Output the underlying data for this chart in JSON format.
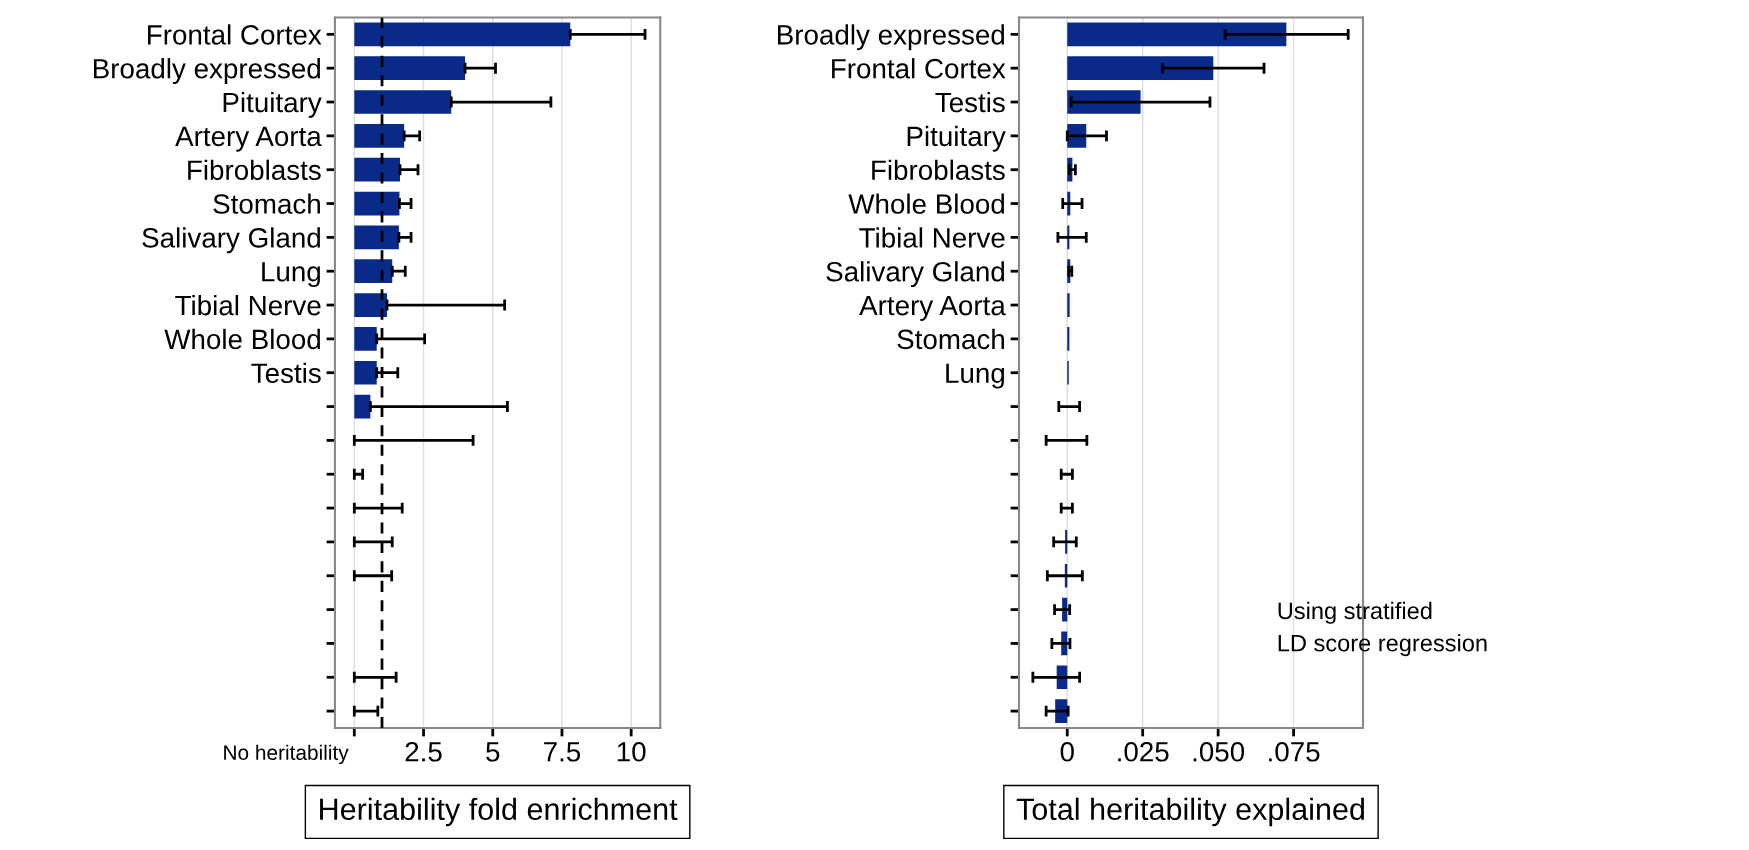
{
  "chart_data": [
    {
      "type": "bar",
      "orientation": "horizontal",
      "xlabel": "Heritability fold enrichment",
      "categories": [
        "Frontal Cortex",
        "Broadly expressed",
        "Pituitary",
        "Artery Aorta",
        "Fibroblasts",
        "Stomach",
        "Salivary Gland",
        "Lung",
        "Tibial Nerve",
        "Whole Blood",
        "Testis",
        null,
        null,
        null,
        null,
        null,
        null,
        null,
        null,
        null,
        null
      ],
      "series": [
        {
          "color": "#0a2a8a",
          "values": [
            7.8,
            4.0,
            3.5,
            1.8,
            1.65,
            1.63,
            1.61,
            1.37,
            1.18,
            0.81,
            0.81,
            0.58,
            0,
            0,
            0,
            0,
            0,
            0,
            0,
            0,
            0
          ],
          "errors": [
            [
              7.8,
              10.5
            ],
            [
              4.0,
              5.1
            ],
            [
              3.5,
              7.1
            ],
            [
              1.8,
              2.36
            ],
            [
              1.65,
              2.3
            ],
            [
              1.63,
              2.05
            ],
            [
              1.61,
              2.05
            ],
            [
              1.37,
              1.84
            ],
            [
              1.18,
              5.43
            ],
            [
              0.81,
              2.54
            ],
            [
              0.81,
              1.57
            ],
            [
              0.58,
              5.53
            ],
            [
              0,
              4.29
            ],
            [
              0,
              0.3
            ],
            [
              0,
              1.73
            ],
            [
              0,
              1.37
            ],
            [
              0,
              1.35
            ],
            null,
            null,
            [
              0,
              1.51
            ],
            [
              0,
              0.85
            ]
          ]
        }
      ],
      "xlim": [
        -0.7,
        11.05
      ],
      "xticks": [
        {
          "value": 0,
          "label": null
        },
        2.5,
        5,
        7.5,
        10
      ],
      "ref_lines": [
        {
          "axis": "x",
          "value": 1,
          "label": "No heritability",
          "color": "#000000",
          "line_style": "dashed"
        }
      ],
      "grid": "x"
    },
    {
      "type": "bar",
      "orientation": "horizontal",
      "xlabel": "Total heritability explained",
      "categories": [
        "Broadly expressed",
        "Frontal Cortex",
        "Testis",
        "Pituitary",
        "Fibroblasts",
        "Whole Blood",
        "Tibial Nerve",
        "Salivary Gland",
        "Artery Aorta",
        "Stomach",
        "Lung",
        null,
        null,
        null,
        null,
        null,
        null,
        null,
        null,
        null,
        null
      ],
      "series": [
        {
          "color": "#0a2a8a",
          "values": [
            0.0726,
            0.0484,
            0.0243,
            0.0063,
            0.0017,
            0.001,
            0.0007,
            0.001,
            0.0008,
            0.0007,
            0.0005,
            0,
            0,
            0,
            0,
            -0.0007,
            -0.0008,
            -0.0017,
            -0.002,
            -0.0035,
            -0.004
          ],
          "errors": [
            [
              0.0523,
              0.0931
            ],
            [
              0.0316,
              0.0652
            ],
            [
              0.0013,
              0.0473
            ],
            [
              0.0,
              0.013
            ],
            [
              0.0007,
              0.0027
            ],
            [
              -0.0015,
              0.0049
            ],
            [
              -0.0031,
              0.0063
            ],
            [
              0.0005,
              0.0015
            ],
            null,
            null,
            null,
            [
              -0.0028,
              0.0041
            ],
            [
              -0.007,
              0.0065
            ],
            [
              -0.002,
              0.0017
            ],
            [
              -0.002,
              0.0017
            ],
            [
              -0.0045,
              0.003
            ],
            [
              -0.0066,
              0.005
            ],
            [
              -0.0042,
              0.0008
            ],
            [
              -0.0051,
              0.0009
            ],
            [
              -0.0114,
              0.0041
            ],
            [
              -0.007,
              0.0003
            ]
          ]
        }
      ],
      "xlim": [
        -0.016,
        0.098
      ],
      "xticks": [
        0,
        {
          "value": 0.025,
          "label": ".025"
        },
        {
          "value": 0.05,
          "label": ".050"
        },
        {
          "value": 0.075,
          "label": ".075"
        }
      ],
      "grid": "x",
      "annotations": [
        "Using stratified\nLD score regression"
      ]
    }
  ]
}
